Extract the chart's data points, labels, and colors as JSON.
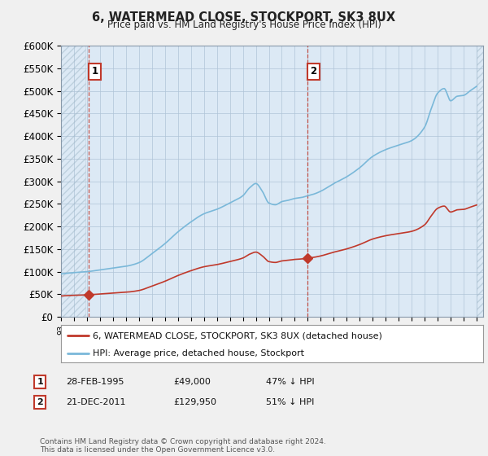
{
  "title": "6, WATERMEAD CLOSE, STOCKPORT, SK3 8UX",
  "subtitle": "Price paid vs. HM Land Registry's House Price Index (HPI)",
  "ylabel_ticks": [
    "£0",
    "£50K",
    "£100K",
    "£150K",
    "£200K",
    "£250K",
    "£300K",
    "£350K",
    "£400K",
    "£450K",
    "£500K",
    "£550K",
    "£600K"
  ],
  "ytick_values": [
    0,
    50000,
    100000,
    150000,
    200000,
    250000,
    300000,
    350000,
    400000,
    450000,
    500000,
    550000,
    600000
  ],
  "sale1_date": 1995.16,
  "sale1_price": 49000,
  "sale1_label": "1",
  "sale2_date": 2011.97,
  "sale2_price": 129950,
  "sale2_label": "2",
  "legend_line1": "6, WATERMEAD CLOSE, STOCKPORT, SK3 8UX (detached house)",
  "legend_line2": "HPI: Average price, detached house, Stockport",
  "footer": "Contains HM Land Registry data © Crown copyright and database right 2024.\nThis data is licensed under the Open Government Licence v3.0.",
  "hpi_color": "#7ab8d9",
  "price_color": "#c0392b",
  "dashed_color": "#c0392b",
  "bg_color": "#f0f0f0",
  "plot_bg_color": "#dce9f5",
  "xmin": 1993.0,
  "xmax": 2025.5,
  "ymin": 0,
  "ymax": 600000
}
